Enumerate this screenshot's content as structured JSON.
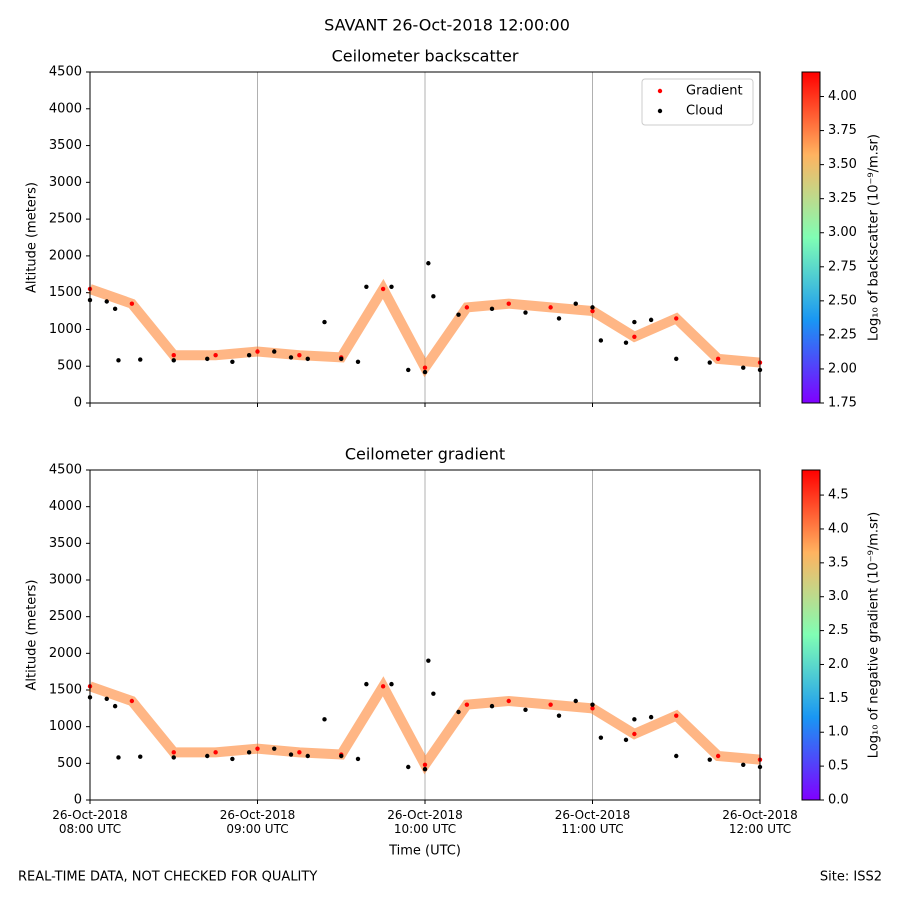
{
  "title": "SAVANT 26-Oct-2018 12:00:00",
  "footer_left": "REAL-TIME DATA, NOT CHECKED FOR QUALITY",
  "footer_right": "Site: ISS2",
  "chart_data": [
    {
      "type": "scatter",
      "title": "Ceilometer backscatter",
      "ylabel": "Altitude (meters)",
      "xlim": [
        8,
        12
      ],
      "xticks": [
        8,
        9,
        10,
        11,
        12
      ],
      "ylim": [
        0,
        4500
      ],
      "yticks": [
        0,
        500,
        1000,
        1500,
        2000,
        2500,
        3000,
        3500,
        4000,
        4500
      ],
      "grid": "x",
      "legend": "upper right",
      "series": [
        {
          "name": "Gradient",
          "color": "#ff0000",
          "x": [
            8.0,
            8.25,
            8.5,
            8.75,
            9.0,
            9.25,
            9.5,
            9.75,
            10.0,
            10.25,
            10.5,
            10.75,
            11.0,
            11.25,
            11.5,
            11.75,
            12.0
          ],
          "values": [
            1550,
            1350,
            650,
            650,
            700,
            650,
            620,
            1550,
            480,
            1300,
            1350,
            1300,
            1250,
            900,
            1150,
            600,
            550
          ]
        },
        {
          "name": "Cloud",
          "color": "#000000",
          "x": [
            8.0,
            8.1,
            8.15,
            8.17,
            8.3,
            8.5,
            8.7,
            8.85,
            8.95,
            9.1,
            9.2,
            9.3,
            9.4,
            9.5,
            9.6,
            9.65,
            9.8,
            9.9,
            10.0,
            10.02,
            10.05,
            10.2,
            10.4,
            10.6,
            10.8,
            10.9,
            11.0,
            11.05,
            11.2,
            11.25,
            11.35,
            11.5,
            11.7,
            11.9,
            12.0
          ],
          "values": [
            1400,
            1380,
            1280,
            580,
            590,
            580,
            600,
            560,
            650,
            700,
            620,
            600,
            1100,
            600,
            560,
            1580,
            1580,
            450,
            420,
            1900,
            1450,
            1200,
            1280,
            1230,
            1150,
            1350,
            1300,
            850,
            820,
            1100,
            1130,
            600,
            550,
            480,
            450
          ]
        }
      ],
      "colorbar": {
        "label": "Log₁₀ of backscatter (10⁻⁹/m.sr)",
        "lim": [
          1.75,
          4.18
        ],
        "ticks": [
          1.75,
          {
            "value": 2,
            "label": "2.00"
          },
          2.25,
          {
            "value": 2.5,
            "label": "2.50"
          },
          2.75,
          {
            "value": 3,
            "label": "3.00"
          },
          3.25,
          {
            "value": 3.5,
            "label": "3.50"
          },
          3.75,
          {
            "value": 4,
            "label": "4.00"
          }
        ],
        "colors": [
          "#8000ff",
          "#1996f3",
          "#80feb4",
          "#ffb360",
          "#ff0000"
        ]
      }
    },
    {
      "type": "scatter",
      "title": "Ceilometer gradient",
      "ylabel": "Altitude (meters)",
      "xlabel": "Time (UTC)",
      "xlim": [
        8,
        12
      ],
      "xticks": [
        {
          "value": 8,
          "label": "26-Oct-2018 08:00 UTC"
        },
        {
          "value": 9,
          "label": "26-Oct-2018 09:00 UTC"
        },
        {
          "value": 10,
          "label": "26-Oct-2018 10:00 UTC"
        },
        {
          "value": 11,
          "label": "26-Oct-2018 11:00 UTC"
        },
        {
          "value": 12,
          "label": "26-Oct-2018 12:00 UTC"
        }
      ],
      "ylim": [
        0,
        4500
      ],
      "yticks": [
        0,
        500,
        1000,
        1500,
        2000,
        2500,
        3000,
        3500,
        4000,
        4500
      ],
      "grid": "x",
      "series": [
        {
          "name": "Gradient",
          "color": "#ff0000",
          "x": [
            8.0,
            8.25,
            8.5,
            8.75,
            9.0,
            9.25,
            9.5,
            9.75,
            10.0,
            10.25,
            10.5,
            10.75,
            11.0,
            11.25,
            11.5,
            11.75,
            12.0
          ],
          "values": [
            1550,
            1350,
            650,
            650,
            700,
            650,
            620,
            1550,
            480,
            1300,
            1350,
            1300,
            1250,
            900,
            1150,
            600,
            550
          ]
        },
        {
          "name": "Cloud",
          "color": "#000000",
          "x": [
            8.0,
            8.1,
            8.15,
            8.17,
            8.3,
            8.5,
            8.7,
            8.85,
            8.95,
            9.1,
            9.2,
            9.3,
            9.4,
            9.5,
            9.6,
            9.65,
            9.8,
            9.9,
            10.0,
            10.02,
            10.05,
            10.2,
            10.4,
            10.6,
            10.8,
            10.9,
            11.0,
            11.05,
            11.2,
            11.25,
            11.35,
            11.5,
            11.7,
            11.9,
            12.0
          ],
          "values": [
            1400,
            1380,
            1280,
            580,
            590,
            580,
            600,
            560,
            650,
            700,
            620,
            600,
            1100,
            600,
            560,
            1580,
            1580,
            450,
            420,
            1900,
            1450,
            1200,
            1280,
            1230,
            1150,
            1350,
            1300,
            850,
            820,
            1100,
            1130,
            600,
            550,
            480,
            450
          ]
        }
      ],
      "colorbar": {
        "label": "Log₁₀ of negative gradient (10⁻⁹/m.sr)",
        "lim": [
          0,
          4.87
        ],
        "ticks": [
          {
            "value": 0,
            "label": "0.0"
          },
          0.5,
          {
            "value": 1,
            "label": "1.0"
          },
          1.5,
          {
            "value": 2,
            "label": "2.0"
          },
          2.5,
          {
            "value": 3,
            "label": "3.0"
          },
          3.5,
          {
            "value": 4,
            "label": "4.0"
          },
          4.5
        ],
        "colors": [
          "#8000ff",
          "#1996f3",
          "#80feb4",
          "#ffb360",
          "#ff0000"
        ]
      }
    }
  ]
}
